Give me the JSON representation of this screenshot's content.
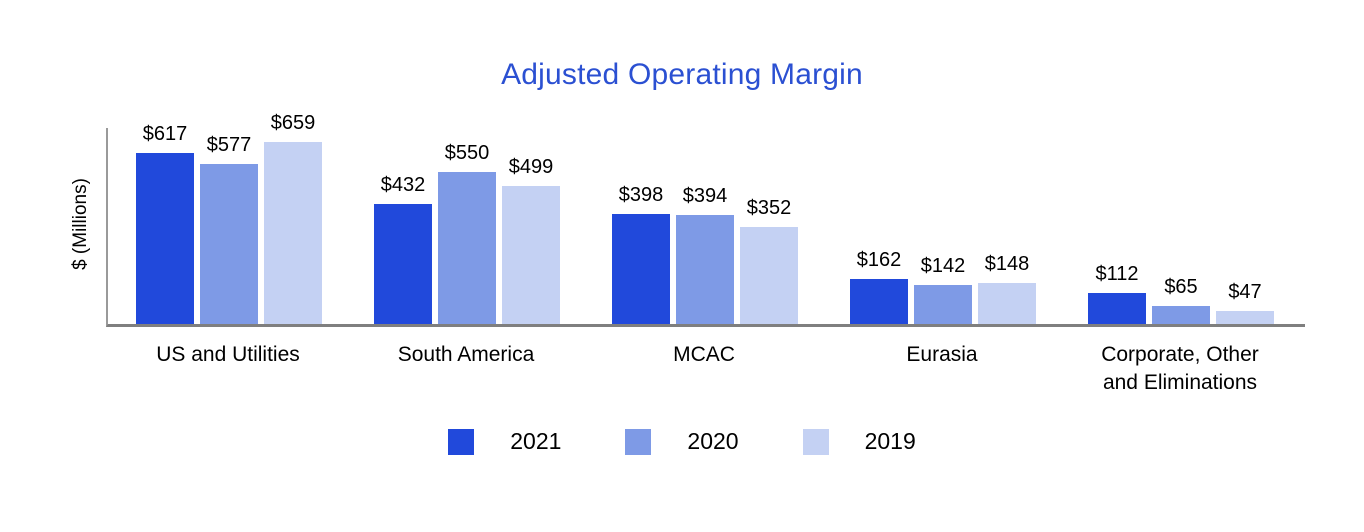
{
  "chart_data": {
    "type": "bar",
    "title": "Adjusted Operating Margin",
    "xlabel": "",
    "ylabel": "$ (Millions)",
    "categories": [
      "US and Utilities",
      "South America",
      "MCAC",
      "Eurasia",
      "Corporate, Other and Eliminations"
    ],
    "series": [
      {
        "name": "2021",
        "color": "#2149DB",
        "values": [
          617,
          432,
          398,
          162,
          112
        ]
      },
      {
        "name": "2020",
        "color": "#7E9AE6",
        "values": [
          577,
          550,
          394,
          142,
          65
        ]
      },
      {
        "name": "2019",
        "color": "#C4D1F3",
        "values": [
          659,
          499,
          352,
          148,
          47
        ]
      }
    ],
    "data_label_prefix": "$",
    "data_labels": [
      [
        "$617",
        "$432",
        "$398",
        "$162",
        "$112"
      ],
      [
        "$577",
        "$550",
        "$394",
        "$142",
        "$65"
      ],
      [
        "$659",
        "$499",
        "$352",
        "$148",
        "$47"
      ]
    ],
    "ylim": [
      0,
      708
    ],
    "grid": false,
    "legend_position": "bottom",
    "legend_items": [
      "2021",
      "2020",
      "2019"
    ]
  },
  "colors": {
    "title_text": "#2B50D2",
    "axis_line": "#7F7F7F",
    "label_text": "#000000",
    "background": "#FFFFFF"
  }
}
